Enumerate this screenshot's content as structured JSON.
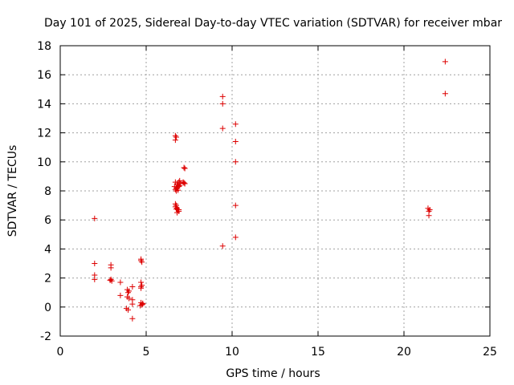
{
  "chart_data": {
    "type": "scatter",
    "title": "Day 101 of 2025, Sidereal Day-to-day VTEC variation (SDTVAR) for receiver mbar",
    "xlabel": "GPS time / hours",
    "ylabel": "SDTVAR / TECUs",
    "xlim": [
      0,
      25
    ],
    "ylim": [
      -2,
      18
    ],
    "xticks": [
      0,
      5,
      10,
      15,
      20,
      25
    ],
    "yticks": [
      -2,
      0,
      2,
      4,
      6,
      8,
      10,
      12,
      14,
      16,
      18
    ],
    "grid": true,
    "marker": "+",
    "color": "#dd0000",
    "series": [
      {
        "name": "SDTVAR",
        "points": [
          [
            2.0,
            6.1
          ],
          [
            2.0,
            3.0
          ],
          [
            2.0,
            2.2
          ],
          [
            2.0,
            1.9
          ],
          [
            2.95,
            2.9
          ],
          [
            2.95,
            2.7
          ],
          [
            2.95,
            1.9
          ],
          [
            3.0,
            1.8
          ],
          [
            2.9,
            1.85
          ],
          [
            3.5,
            1.7
          ],
          [
            3.5,
            0.8
          ],
          [
            3.9,
            1.2
          ],
          [
            4.0,
            1.1
          ],
          [
            3.95,
            1.0
          ],
          [
            3.9,
            0.7
          ],
          [
            4.0,
            0.6
          ],
          [
            3.85,
            -0.1
          ],
          [
            3.95,
            -0.2
          ],
          [
            4.2,
            1.4
          ],
          [
            4.2,
            0.5
          ],
          [
            4.2,
            0.2
          ],
          [
            4.2,
            -0.8
          ],
          [
            4.7,
            3.3
          ],
          [
            4.75,
            3.1
          ],
          [
            4.7,
            3.2
          ],
          [
            4.7,
            1.7
          ],
          [
            4.75,
            1.5
          ],
          [
            4.7,
            1.4
          ],
          [
            4.7,
            1.3
          ],
          [
            4.7,
            0.3
          ],
          [
            4.8,
            0.2
          ],
          [
            4.75,
            0.15
          ],
          [
            4.65,
            0.1
          ],
          [
            4.8,
            0.25
          ],
          [
            6.7,
            11.8
          ],
          [
            6.75,
            11.7
          ],
          [
            6.7,
            11.5
          ],
          [
            6.65,
            8.3
          ],
          [
            6.7,
            8.1
          ],
          [
            6.75,
            8.0
          ],
          [
            6.8,
            8.2
          ],
          [
            6.85,
            8.4
          ],
          [
            6.9,
            8.6
          ],
          [
            6.95,
            8.7
          ],
          [
            7.0,
            8.5
          ],
          [
            6.8,
            8.5
          ],
          [
            6.7,
            8.6
          ],
          [
            6.75,
            8.2
          ],
          [
            6.9,
            8.3
          ],
          [
            6.85,
            8.05
          ],
          [
            6.95,
            8.35
          ],
          [
            6.7,
            7.1
          ],
          [
            6.75,
            7.0
          ],
          [
            6.8,
            6.8
          ],
          [
            6.7,
            6.9
          ],
          [
            6.85,
            6.7
          ],
          [
            6.9,
            6.6
          ],
          [
            6.8,
            6.5
          ],
          [
            6.75,
            6.75
          ],
          [
            6.9,
            6.7
          ],
          [
            7.2,
            9.6
          ],
          [
            7.25,
            9.55
          ],
          [
            7.15,
            8.6
          ],
          [
            7.25,
            8.5
          ],
          [
            7.2,
            8.55
          ],
          [
            9.45,
            14.5
          ],
          [
            9.45,
            14.0
          ],
          [
            9.45,
            12.3
          ],
          [
            9.45,
            4.2
          ],
          [
            10.2,
            12.6
          ],
          [
            10.2,
            11.4
          ],
          [
            10.2,
            10.0
          ],
          [
            10.2,
            7.0
          ],
          [
            10.2,
            4.8
          ],
          [
            21.4,
            6.8
          ],
          [
            21.45,
            6.6
          ],
          [
            21.5,
            6.7
          ],
          [
            21.45,
            6.3
          ],
          [
            22.4,
            16.9
          ],
          [
            22.4,
            14.7
          ]
        ]
      }
    ]
  }
}
